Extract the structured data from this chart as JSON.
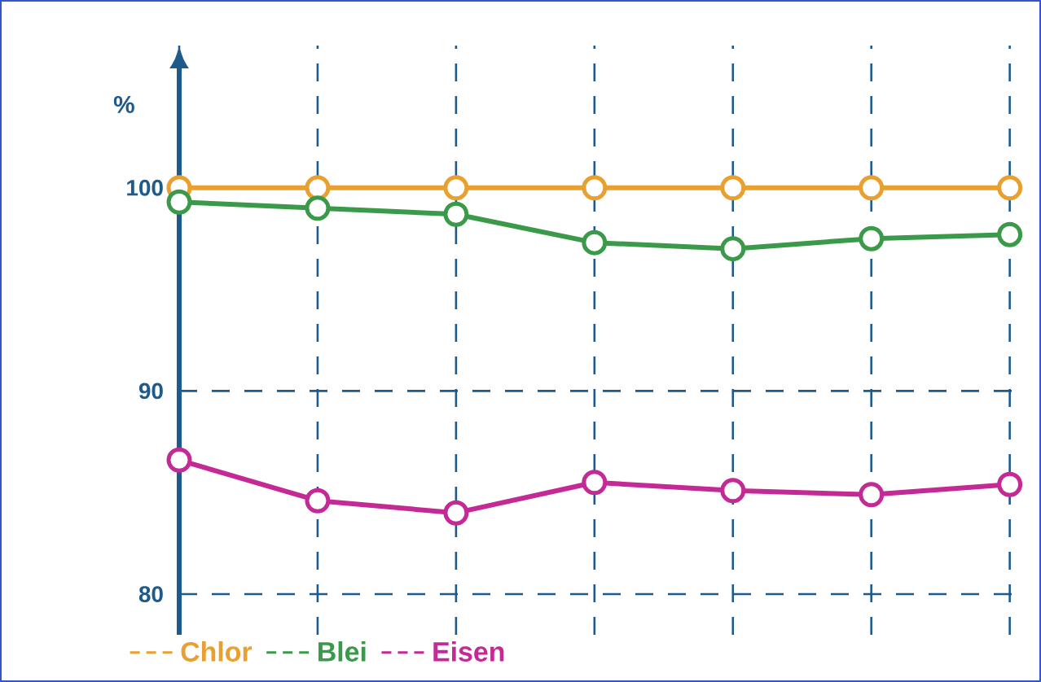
{
  "chart_data": {
    "type": "line",
    "ylabel": "%",
    "categories": [
      null,
      null,
      null,
      null,
      null,
      null,
      null
    ],
    "series": [
      {
        "name": "Chlor",
        "color": "#e8a030",
        "values": [
          100,
          100,
          100,
          100,
          100,
          100,
          100
        ]
      },
      {
        "name": "Blei",
        "color": "#3a9a4a",
        "values": [
          99.3,
          99.0,
          98.7,
          97.3,
          97.0,
          97.5,
          97.7
        ]
      },
      {
        "name": "Eisen",
        "color": "#c42a96",
        "values": [
          86.6,
          84.6,
          84.0,
          85.5,
          85.1,
          84.9,
          85.4
        ]
      }
    ],
    "ylim": [
      78,
      107
    ],
    "yticks": [
      80,
      90,
      100
    ],
    "grid": true,
    "legend": "bottom",
    "marker": "circle",
    "line_style": "solid"
  }
}
